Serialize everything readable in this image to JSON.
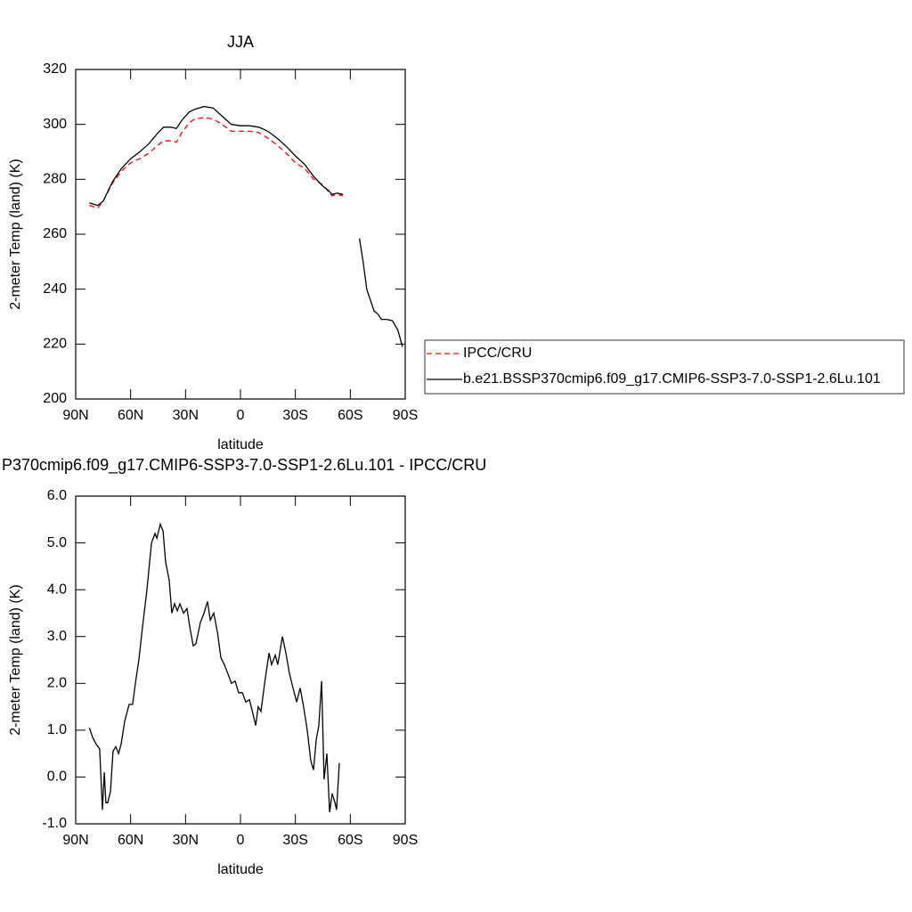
{
  "chart_data": [
    {
      "type": "line",
      "title": "JJA",
      "x_label": "latitude",
      "y_label": "2-meter Temp (land) (K)",
      "x": [
        82.5,
        78,
        75,
        70,
        65,
        60,
        55,
        50,
        45,
        42,
        38,
        35,
        32,
        28,
        25,
        20,
        15,
        10,
        5,
        0,
        -5,
        -10,
        -15,
        -20,
        -25,
        -30,
        -35,
        -40,
        -45,
        -48,
        -50,
        -53,
        -56,
        -60,
        -65,
        -67,
        -69,
        -71,
        -73,
        -75,
        -77,
        -80,
        -83,
        -86,
        -88.5
      ],
      "series": [
        {
          "name": "IPCC/CRU",
          "color": "#ff0000",
          "linestyle": "dashed",
          "values": [
            270.5,
            269.5,
            272,
            278.5,
            283,
            286,
            287.5,
            289.5,
            292.5,
            294,
            294,
            293.5,
            297,
            300.5,
            302,
            302.5,
            302,
            300,
            297.5,
            297.5,
            297.5,
            297,
            295,
            292.5,
            289.5,
            286,
            284,
            280,
            278,
            275.5,
            274,
            274.5,
            274,
            null,
            null,
            null,
            null,
            null,
            null,
            null,
            null,
            null,
            null,
            null,
            null
          ]
        },
        {
          "name": "b.e21.BSSP370cmip6.f09_g17.CMIP6-SSP3-7.0-SSP1-2.6Lu.101",
          "color": "#000000",
          "linestyle": "solid",
          "values": [
            271.4,
            270.5,
            272,
            279,
            284,
            287.5,
            290,
            293,
            297,
            299,
            299,
            298.5,
            301.5,
            304.5,
            305.5,
            306.5,
            306,
            303,
            300,
            299.5,
            299.5,
            299,
            297.5,
            295,
            292,
            288.5,
            285.5,
            281,
            277.5,
            276,
            274.5,
            275,
            274.5,
            null,
            258.5,
            250,
            240,
            236,
            232,
            231,
            229,
            229,
            228.5,
            225,
            219
          ]
        }
      ],
      "xlim": [
        90,
        -90
      ],
      "ylim": [
        200,
        320
      ],
      "xticks": [
        {
          "value": 90,
          "label": "90N"
        },
        {
          "value": 60,
          "label": "60N"
        },
        {
          "value": 30,
          "label": "30N"
        },
        0,
        {
          "value": -30,
          "label": "30S"
        },
        {
          "value": -60,
          "label": "60S"
        },
        {
          "value": -90,
          "label": "90S"
        }
      ],
      "yticks": [
        200,
        220,
        240,
        260,
        280,
        300,
        320
      ]
    },
    {
      "type": "line",
      "title": "P370cmip6.f09_g17.CMIP6-SSP3-7.0-SSP1-2.6Lu.101 - IPCC/CRU",
      "x_label": "latitude",
      "y_label": "2-meter Temp (land) (K)",
      "x": [
        82.5,
        80.8,
        78.8,
        76.9,
        75.4,
        74.4,
        73.5,
        72.5,
        71.0,
        69.6,
        68.1,
        66.6,
        65.2,
        63.2,
        60.8,
        58.9,
        57.4,
        55.5,
        53.5,
        51.1,
        48.6,
        46.7,
        45.7,
        43.8,
        42.3,
        40.9,
        38.9,
        37.5,
        36.0,
        34.5,
        33.1,
        31.1,
        29.2,
        27.7,
        25.8,
        24.3,
        21.9,
        19.9,
        18.0,
        16.5,
        14.6,
        12.6,
        10.7,
        8.8,
        6.8,
        4.9,
        2.9,
        1.0,
        -1.0,
        -2.9,
        -4.9,
        -6.8,
        -8.3,
        -9.7,
        -11.2,
        -13.2,
        -15.6,
        -17.0,
        -19.0,
        -20.4,
        -22.9,
        -24.8,
        -26.8,
        -28.7,
        -30.7,
        -32.6,
        -34.5,
        -36.5,
        -38.4,
        -39.9,
        -41.4,
        -42.8,
        -44.3,
        -45.7,
        -47.2,
        -48.7,
        -50.1,
        -51.6,
        -52.5,
        -54.0
      ],
      "series": [
        {
          "color": "#000000",
          "linestyle": "solid",
          "values": [
            1.05,
            0.85,
            0.7,
            0.6,
            -0.7,
            0.1,
            -0.55,
            -0.55,
            -0.3,
            0.55,
            0.65,
            0.5,
            0.7,
            1.2,
            1.55,
            1.55,
            2.0,
            2.5,
            3.2,
            4.0,
            5.0,
            5.2,
            5.1,
            5.4,
            5.25,
            4.6,
            4.2,
            3.5,
            3.7,
            3.55,
            3.7,
            3.5,
            3.6,
            3.2,
            2.8,
            2.85,
            3.3,
            3.5,
            3.75,
            3.35,
            3.5,
            3.1,
            2.55,
            2.4,
            2.2,
            2.0,
            2.05,
            1.8,
            1.8,
            1.6,
            1.65,
            1.35,
            1.1,
            1.5,
            1.4,
            2.0,
            2.65,
            2.4,
            2.6,
            2.4,
            3.0,
            2.65,
            2.2,
            1.9,
            1.6,
            1.9,
            1.5,
            1.0,
            0.35,
            0.15,
            0.8,
            1.1,
            2.05,
            -0.05,
            0.5,
            -0.75,
            -0.35,
            -0.55,
            -0.7,
            0.3
          ]
        }
      ],
      "xlim": [
        90,
        -90
      ],
      "ylim": [
        -1,
        6
      ],
      "xticks": [
        {
          "value": 90,
          "label": "90N"
        },
        {
          "value": 60,
          "label": "60N"
        },
        {
          "value": 30,
          "label": "30N"
        },
        0,
        {
          "value": -30,
          "label": "30S"
        },
        {
          "value": -60,
          "label": "60S"
        },
        {
          "value": -90,
          "label": "90S"
        }
      ],
      "yticks": [
        {
          "value": -1,
          "label": "-1.0"
        },
        {
          "value": 0,
          "label": "0.0"
        },
        {
          "value": 1,
          "label": "1.0"
        },
        {
          "value": 2,
          "label": "2.0"
        },
        {
          "value": 3,
          "label": "3.0"
        },
        {
          "value": 4,
          "label": "4.0"
        },
        {
          "value": 5,
          "label": "5.0"
        },
        {
          "value": 6,
          "label": "6.0"
        }
      ]
    }
  ]
}
